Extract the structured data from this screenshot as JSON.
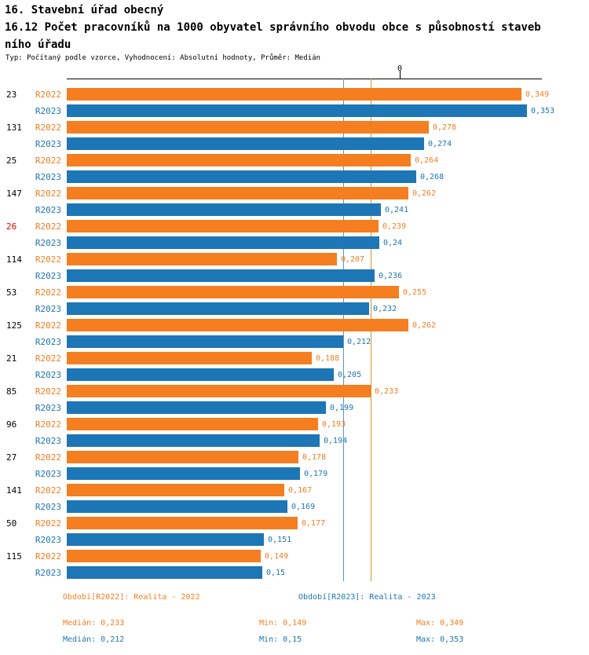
{
  "header": {
    "title_line1": "16. Stavební úřad obecný",
    "title_line2": "16.12 Počet pracovníků na 1000 obyvatel správního obvodu obce s působností staveb",
    "title_line3": "ního úřadu",
    "subtitle": "Typ: Počítaný podle vzorce, Vyhodnocení: Absolutní hodnoty, Průměr: Medián"
  },
  "axis": {
    "zero_label": "0"
  },
  "chart_data": {
    "type": "bar",
    "orientation": "horizontal",
    "title": "16.12 Počet pracovníků na 1000 obyvatel správního obvodu obce s působností stavebního úřadu",
    "xlim": [
      0,
      0.37
    ],
    "grid": false,
    "legend_position": "bottom",
    "categories": [
      "23",
      "131",
      "25",
      "147",
      "26",
      "114",
      "53",
      "125",
      "21",
      "85",
      "96",
      "27",
      "141",
      "50",
      "115"
    ],
    "highlighted_category": "26",
    "highlight_color": "#e00000",
    "series": [
      {
        "name": "R2022",
        "legend": "Období[R2022]: Realita - 2022",
        "color": "#f57e20",
        "median_line_color": "#c9982f",
        "values": [
          0.349,
          0.278,
          0.264,
          0.262,
          0.239,
          0.207,
          0.255,
          0.262,
          0.188,
          0.233,
          0.193,
          0.178,
          0.167,
          0.177,
          0.149
        ],
        "value_labels": [
          "0,349",
          "0,278",
          "0,264",
          "0,262",
          "0,239",
          "0,207",
          "0,255",
          "0,262",
          "0,188",
          "0,233",
          "0,193",
          "0,178",
          "0,167",
          "0,177",
          "0,149"
        ],
        "median": 0.233,
        "stats": {
          "median": "Medián: 0,233",
          "min": "Min: 0,149",
          "max": "Max: 0,349"
        }
      },
      {
        "name": "R2023",
        "legend": "Období[R2023]: Realita - 2023",
        "color": "#1d76b5",
        "median_line_color": "#5b94c4",
        "values": [
          0.353,
          0.274,
          0.268,
          0.241,
          0.24,
          0.236,
          0.232,
          0.212,
          0.205,
          0.199,
          0.194,
          0.179,
          0.169,
          0.151,
          0.15
        ],
        "value_labels": [
          "0,353",
          "0,274",
          "0,268",
          "0,241",
          "0,24",
          "0,236",
          "0,232",
          "0,212",
          "0,205",
          "0,199",
          "0,194",
          "0,179",
          "0,169",
          "0,151",
          "0,15"
        ],
        "median": 0.212,
        "stats": {
          "median": "Medián: 0,212",
          "min": "Min: 0,15",
          "max": "Max: 0,353"
        }
      }
    ]
  }
}
